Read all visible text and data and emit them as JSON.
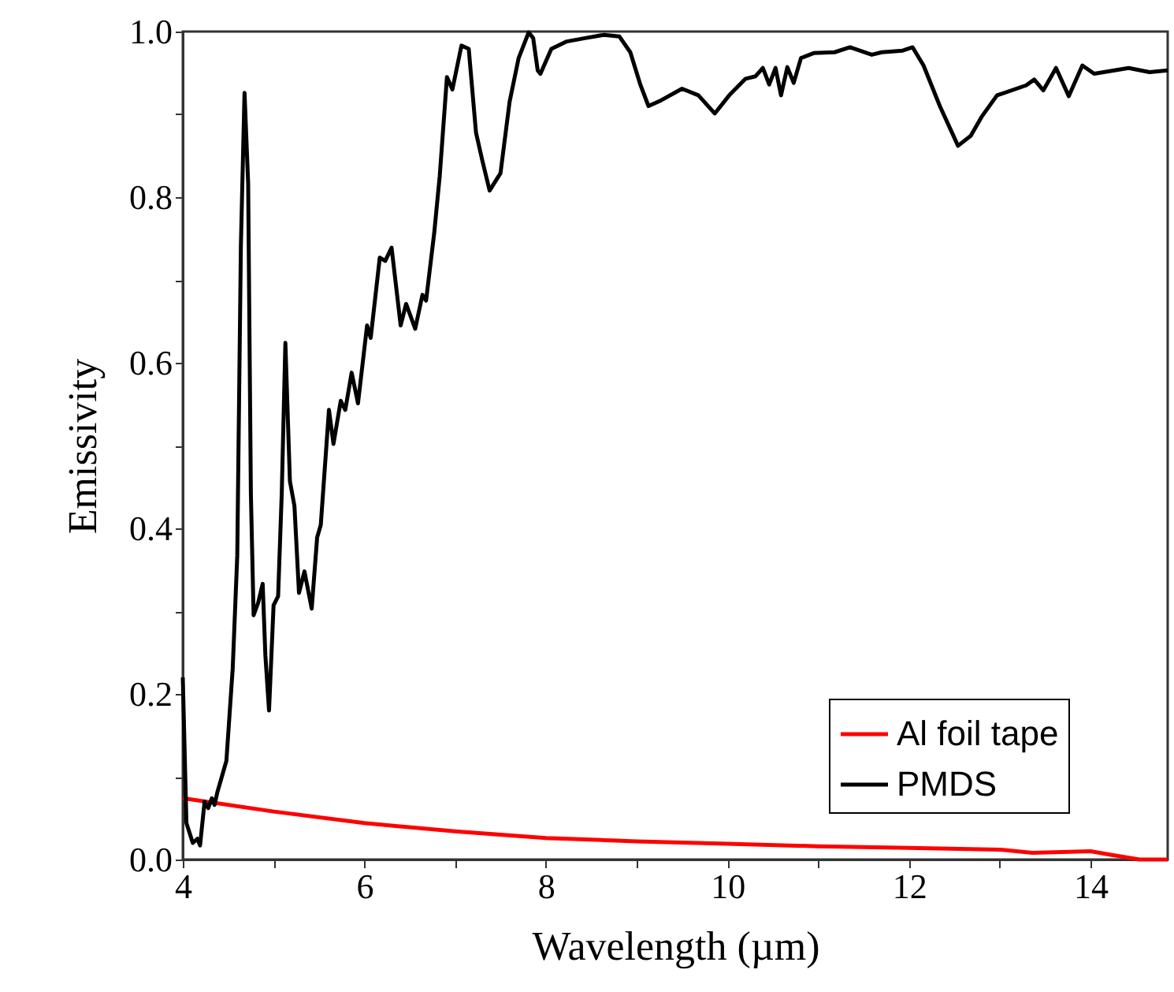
{
  "chart_data": {
    "type": "line",
    "xlabel": "Wavelength (µm)",
    "ylabel": "Emissivity",
    "xlim": [
      4,
      14.85
    ],
    "ylim": [
      0,
      1
    ],
    "xticks": [
      4,
      {
        "value": 5,
        "label": null
      },
      6,
      {
        "value": 7,
        "label": null
      },
      8,
      {
        "value": 9,
        "label": null
      },
      10,
      {
        "value": 11,
        "label": null
      },
      12,
      {
        "value": 13,
        "label": null
      },
      14
    ],
    "yticks": [
      {
        "value": 0,
        "label": "0.0"
      },
      {
        "value": 0.1,
        "label": null
      },
      0.2,
      {
        "value": 0.3,
        "label": null
      },
      0.4,
      {
        "value": 0.5,
        "label": null
      },
      0.6,
      {
        "value": 0.7,
        "label": null
      },
      0.8,
      {
        "value": 0.9,
        "label": null
      },
      {
        "value": 1,
        "label": "1.0"
      }
    ],
    "grid": false,
    "legend": "bottom right",
    "line_style": "solid",
    "marker": "none",
    "series": [
      {
        "name": "Al foil tape",
        "color": "#ff0000",
        "x": [
          4.0,
          5.0,
          6.0,
          7.0,
          8.0,
          9.0,
          10.0,
          11.0,
          12.0,
          13.0,
          13.36,
          14.0,
          14.21,
          14.54,
          14.85
        ],
        "values": [
          0.074,
          0.058,
          0.044,
          0.034,
          0.026,
          0.022,
          0.019,
          0.016,
          0.014,
          0.012,
          0.008,
          0.01,
          0.006,
          0.0,
          0.0
        ]
      },
      {
        "name": "PMDS",
        "color": "#000000",
        "x": [
          4.0,
          4.04,
          4.11,
          4.16,
          4.19,
          4.24,
          4.28,
          4.32,
          4.35,
          4.38,
          4.48,
          4.55,
          4.6,
          4.64,
          4.68,
          4.72,
          4.75,
          4.78,
          4.83,
          4.88,
          4.91,
          4.95,
          5.0,
          5.05,
          5.09,
          5.13,
          5.18,
          5.23,
          5.28,
          5.34,
          5.42,
          5.48,
          5.52,
          5.61,
          5.66,
          5.74,
          5.79,
          5.86,
          5.93,
          6.03,
          6.07,
          6.17,
          6.23,
          6.3,
          6.4,
          6.46,
          6.56,
          6.64,
          6.68,
          6.77,
          6.83,
          6.91,
          6.97,
          7.07,
          7.15,
          7.23,
          7.3,
          7.38,
          7.5,
          7.6,
          7.7,
          7.81,
          7.86,
          7.91,
          7.94,
          8.06,
          8.23,
          8.43,
          8.64,
          8.81,
          8.93,
          9.04,
          9.13,
          9.27,
          9.5,
          9.68,
          9.86,
          10.02,
          10.2,
          10.31,
          10.39,
          10.46,
          10.53,
          10.59,
          10.66,
          10.73,
          10.81,
          10.95,
          11.18,
          11.35,
          11.59,
          11.7,
          11.93,
          12.04,
          12.16,
          12.34,
          12.54,
          12.68,
          12.8,
          12.97,
          13.29,
          13.38,
          13.48,
          13.62,
          13.76,
          13.91,
          14.04,
          14.42,
          14.65,
          14.85
        ],
        "values": [
          0.22,
          0.044,
          0.02,
          0.025,
          0.017,
          0.07,
          0.062,
          0.074,
          0.066,
          0.081,
          0.119,
          0.231,
          0.367,
          0.742,
          0.926,
          0.817,
          0.442,
          0.295,
          0.31,
          0.333,
          0.246,
          0.18,
          0.307,
          0.318,
          0.442,
          0.624,
          0.457,
          0.427,
          0.322,
          0.348,
          0.303,
          0.389,
          0.404,
          0.543,
          0.502,
          0.554,
          0.543,
          0.588,
          0.551,
          0.645,
          0.63,
          0.727,
          0.723,
          0.739,
          0.645,
          0.671,
          0.641,
          0.682,
          0.675,
          0.757,
          0.825,
          0.945,
          0.93,
          0.983,
          0.979,
          0.878,
          0.844,
          0.808,
          0.829,
          0.915,
          0.968,
          0.999,
          0.992,
          0.953,
          0.949,
          0.979,
          0.988,
          0.992,
          0.996,
          0.994,
          0.975,
          0.936,
          0.91,
          0.917,
          0.931,
          0.923,
          0.901,
          0.923,
          0.943,
          0.946,
          0.956,
          0.936,
          0.956,
          0.923,
          0.957,
          0.938,
          0.968,
          0.974,
          0.975,
          0.981,
          0.972,
          0.975,
          0.977,
          0.981,
          0.959,
          0.91,
          0.862,
          0.874,
          0.897,
          0.923,
          0.935,
          0.942,
          0.929,
          0.956,
          0.922,
          0.959,
          0.949,
          0.956,
          0.951,
          0.953
        ]
      }
    ]
  }
}
